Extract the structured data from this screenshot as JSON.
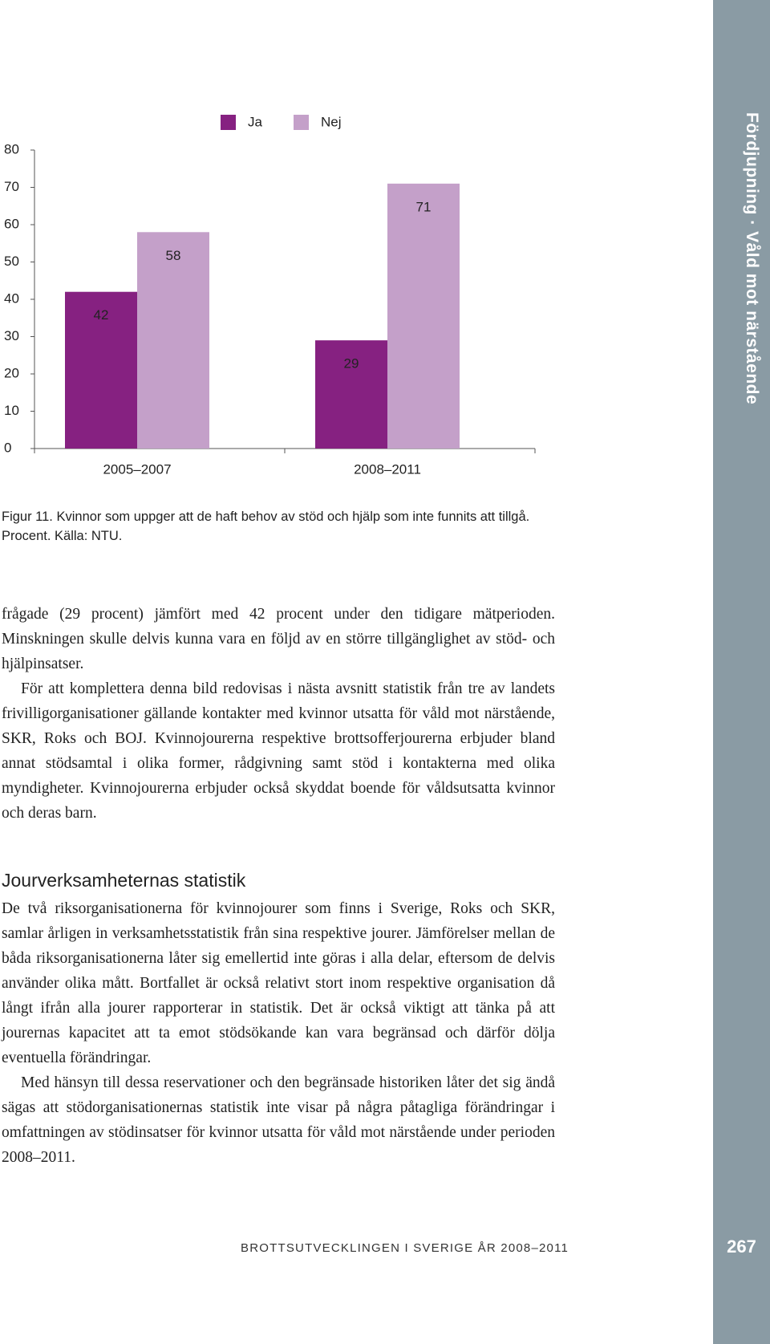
{
  "chart_data": {
    "type": "bar",
    "categories": [
      "2005–2007",
      "2008–2011"
    ],
    "series": [
      {
        "name": "Ja",
        "color": "#862181",
        "values": [
          42,
          29
        ]
      },
      {
        "name": "Nej",
        "color": "#c4a0c9",
        "values": [
          58,
          71
        ]
      }
    ],
    "ylim": [
      0,
      80
    ],
    "yticks": [
      0,
      10,
      20,
      30,
      40,
      50,
      60,
      70,
      80
    ],
    "grid": false
  },
  "caption": "Figur 11. Kvinnor som uppger att de haft behov av stöd och hjälp som inte funnits att tillgå. Procent. Källa: NTU.",
  "paragraphs": [
    "frågade (29 procent) jämfört med 42 procent under den tidigare mätperioden. Minskningen skulle delvis kunna vara en följd av en större tillgänglighet av stöd- och hjälpinsatser.",
    "För att komplettera denna bild redovisas i nästa avsnitt statistik från tre av landets frivilligorganisationer gällande kontakter med kvinnor utsatta för våld mot närstående, SKR, Roks och BOJ. Kvinnojourerna respektive brottsofferjourerna erbjuder bland annat stödsamtal i olika former, rådgivning samt stöd i kontakterna med olika myndigheter. Kvinnojourerna erbjuder också skyddat boende för våldsutsatta kvinnor och deras barn."
  ],
  "section": {
    "heading": "Jourverksamheternas statistik",
    "paragraphs": [
      "De två riksorganisationerna för kvinnojourer som finns i Sverige, Roks och SKR, samlar årligen in verksamhetsstatistik från sina respektive jourer. Jämförelser mellan de båda riksorganisationerna låter sig emellertid inte göras i alla delar, eftersom de delvis använder olika mått. Bortfallet är också relativt stort inom respektive organisation då långt ifrån alla jourer rapporterar in statistik. Det är också viktigt att tänka på att jourernas kapacitet att ta emot stödsökande kan vara begränsad och därför dölja eventuella förändringar.",
      "Med hänsyn till dessa reservationer och den begränsade historiken låter det sig ändå sägas att stödorganisationernas statistik inte visar på några påtagliga förändringar i omfattningen av stödinsatser för kvinnor utsatta för våld mot närstående under perioden 2008–2011."
    ]
  },
  "sidebar": {
    "label": "Fördjupning · Våld mot närstående",
    "page_number": "267"
  },
  "footer": "BROTTSUTVECKLINGEN I SVERIGE ÅR 2008–2011"
}
